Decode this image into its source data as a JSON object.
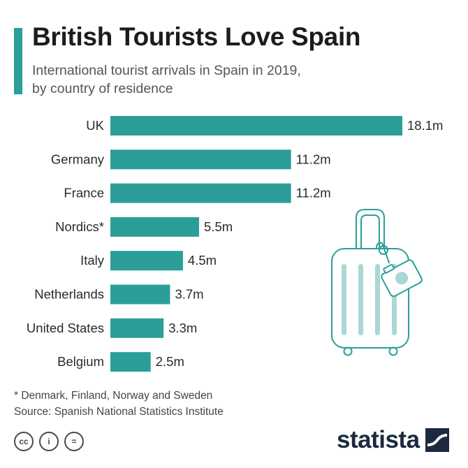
{
  "header": {
    "title": "British Tourists Love Spain",
    "subtitle_line1": "International tourist arrivals in Spain in 2019,",
    "subtitle_line2": "by country of residence"
  },
  "chart_data": {
    "type": "bar",
    "orientation": "horizontal",
    "title": "British Tourists Love Spain",
    "subtitle": "International tourist arrivals in Spain in 2019, by country of residence",
    "categories": [
      "UK",
      "Germany",
      "France",
      "Nordics*",
      "Italy",
      "Netherlands",
      "United States",
      "Belgium"
    ],
    "values": [
      18.1,
      11.2,
      11.2,
      5.5,
      4.5,
      3.7,
      3.3,
      2.5
    ],
    "value_labels": [
      "18.1m",
      "11.2m",
      "11.2m",
      "5.5m",
      "4.5m",
      "3.7m",
      "3.3m",
      "2.5m"
    ],
    "unit": "m",
    "xlim": [
      0,
      18.1
    ],
    "bar_color": "#2b9e99",
    "grid": false,
    "legend": "none"
  },
  "footnote": {
    "note": "* Denmark, Finland, Norway and Sweden",
    "source": "Source: Spanish National Statistics Institute"
  },
  "license_icons": [
    {
      "name": "creative-commons-icon",
      "glyph": "cc"
    },
    {
      "name": "attribution-icon",
      "glyph": "i"
    },
    {
      "name": "no-derivatives-icon",
      "glyph": "="
    }
  ],
  "brand": {
    "logo_text": "statista",
    "accent_color": "#2b9e99",
    "logo_color": "#1b2a40"
  },
  "illustration": {
    "icon": "suitcase-with-camera-tag-icon",
    "stroke_color": "#2b9e99",
    "fill_color": "#a9d8d6"
  }
}
